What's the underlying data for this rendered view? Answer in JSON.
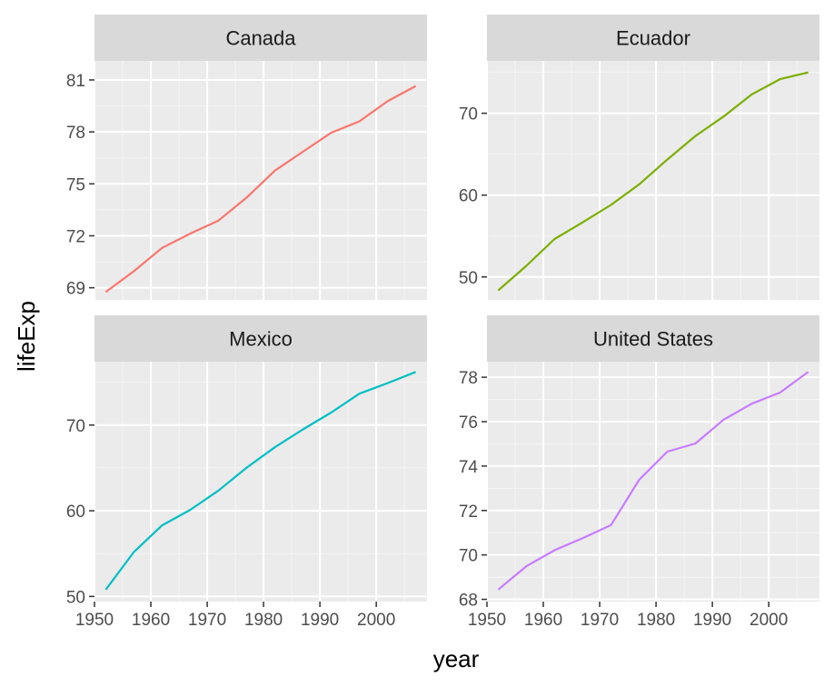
{
  "chart_data": {
    "type": "line",
    "layout": "facet_wrap",
    "xlabel": "year",
    "ylabel": "lifeExp",
    "x_ticks": [
      1950,
      1960,
      1970,
      1980,
      1990,
      2000
    ],
    "x_tick_labels": [
      "1950",
      "1960",
      "1970",
      "1980",
      "1990",
      "2000"
    ],
    "xlim": [
      1950,
      2009
    ],
    "x": [
      1952,
      1957,
      1962,
      1967,
      1972,
      1977,
      1982,
      1987,
      1992,
      1997,
      2002,
      2007
    ],
    "panels": [
      {
        "name": "Canada",
        "color": "#F8766D",
        "ylim": [
          68.3,
          82.1
        ],
        "y_ticks": [
          69,
          72,
          75,
          78,
          81
        ],
        "y_tick_labels": [
          "69",
          "72",
          "75",
          "78",
          "81"
        ],
        "values": [
          68.75,
          69.96,
          71.3,
          72.13,
          72.88,
          74.21,
          75.76,
          76.86,
          77.95,
          78.61,
          79.77,
          80.65
        ]
      },
      {
        "name": "Ecuador",
        "color": "#7CAE00",
        "ylim": [
          47.2,
          76.4
        ],
        "y_ticks": [
          50,
          60,
          70
        ],
        "y_tick_labels": [
          "50",
          "60",
          "70"
        ],
        "values": [
          48.36,
          51.36,
          54.64,
          56.68,
          58.8,
          61.31,
          64.34,
          67.23,
          69.61,
          72.31,
          74.17,
          74.99
        ]
      },
      {
        "name": "Mexico",
        "color": "#00BFC4",
        "ylim": [
          49.4,
          77.4
        ],
        "y_ticks": [
          50,
          60,
          70
        ],
        "y_tick_labels": [
          "50",
          "60",
          "70"
        ],
        "values": [
          50.79,
          55.19,
          58.3,
          60.11,
          62.36,
          65.03,
          67.41,
          69.5,
          71.46,
          73.67,
          74.9,
          76.2
        ]
      },
      {
        "name": "United States",
        "color": "#C77CFF",
        "ylim": [
          67.9,
          78.7
        ],
        "y_ticks": [
          68,
          70,
          72,
          74,
          76,
          78
        ],
        "y_tick_labels": [
          "68",
          "70",
          "72",
          "74",
          "76",
          "78"
        ],
        "values": [
          68.44,
          69.49,
          70.21,
          70.76,
          71.34,
          73.38,
          74.65,
          75.02,
          76.09,
          76.81,
          77.31,
          78.24
        ]
      }
    ]
  }
}
